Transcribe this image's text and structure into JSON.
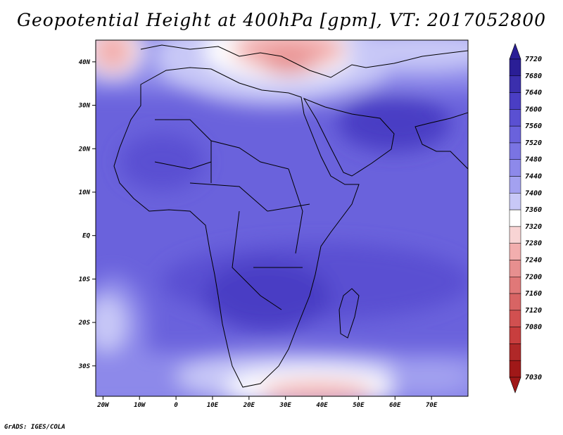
{
  "title": "Geopotential Height at 400hPa [gpm], VT: 2017052800",
  "credit": "GrADS: IGES/COLA",
  "map": {
    "lon_range": [
      -22,
      80
    ],
    "lat_range": [
      -37,
      45
    ],
    "lat_ticks": [
      {
        "value": 40,
        "label": "40N"
      },
      {
        "value": 30,
        "label": "30N"
      },
      {
        "value": 20,
        "label": "20N"
      },
      {
        "value": 10,
        "label": "10N"
      },
      {
        "value": 0,
        "label": "EQ"
      },
      {
        "value": -10,
        "label": "10S"
      },
      {
        "value": -20,
        "label": "20S"
      },
      {
        "value": -30,
        "label": "30S"
      }
    ],
    "lon_ticks": [
      {
        "value": -20,
        "label": "20W"
      },
      {
        "value": -10,
        "label": "10W"
      },
      {
        "value": 0,
        "label": "0"
      },
      {
        "value": 10,
        "label": "10E"
      },
      {
        "value": 20,
        "label": "20E"
      },
      {
        "value": 30,
        "label": "30E"
      },
      {
        "value": 40,
        "label": "40E"
      },
      {
        "value": 50,
        "label": "50E"
      },
      {
        "value": 60,
        "label": "60E"
      },
      {
        "value": 70,
        "label": "70E"
      }
    ]
  },
  "colorbar": {
    "labels": [
      "7720",
      "7680",
      "7640",
      "7600",
      "7560",
      "7520",
      "7480",
      "7440",
      "7400",
      "7360",
      "7320",
      "7280",
      "7240",
      "7200",
      "7160",
      "7120",
      "7080",
      "7030"
    ],
    "colors": [
      "#2a1e96",
      "#3b2fad",
      "#4a3ec4",
      "#5a50d2",
      "#6a62dc",
      "#7a74e3",
      "#8d89ea",
      "#a3a1f0",
      "#c8c8f7",
      "#ffffff",
      "#f8d4d4",
      "#f2aeae",
      "#e78f8f",
      "#e07878",
      "#d86464",
      "#d15050",
      "#c83e3e",
      "#b02828",
      "#a01818"
    ]
  }
}
